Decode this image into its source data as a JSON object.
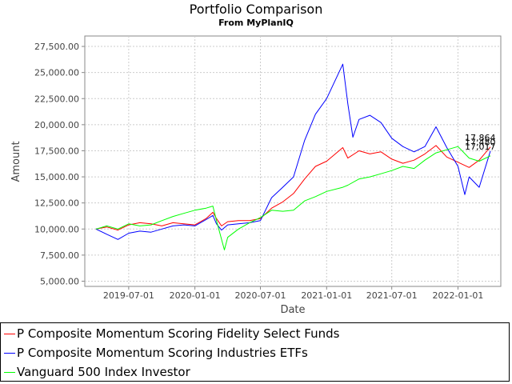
{
  "chart_data": {
    "type": "line",
    "title": "Portfolio Comparison",
    "subtitle": "From MyPlanIQ",
    "xlabel": "Date",
    "ylabel": "Amount",
    "ylim": [
      4500,
      28500
    ],
    "xlim": [
      "2019-03-01",
      "2022-04-30"
    ],
    "y_ticks": [
      "5,000.00",
      "7,500.00",
      "10,000.00",
      "12,500.00",
      "15,000.00",
      "17,500.00",
      "20,000.00",
      "22,500.00",
      "25,000.00",
      "27,500.00"
    ],
    "x_ticks": [
      "2019-07-01",
      "2020-01-01",
      "2020-07-01",
      "2021-01-01",
      "2021-07-01",
      "2022-01-01"
    ],
    "grid": true,
    "legend_position": "bottom",
    "end_labels": [
      "17,864",
      "17,480",
      "17,017"
    ],
    "series": [
      {
        "name": "P Composite Momentum Scoring Fidelity Select Funds",
        "color": "#ff0000",
        "points": [
          [
            "2019-04-01",
            10000
          ],
          [
            "2019-05-01",
            10200
          ],
          [
            "2019-06-01",
            9900
          ],
          [
            "2019-07-01",
            10400
          ],
          [
            "2019-08-01",
            10600
          ],
          [
            "2019-09-01",
            10500
          ],
          [
            "2019-10-01",
            10300
          ],
          [
            "2019-11-01",
            10600
          ],
          [
            "2019-12-01",
            10500
          ],
          [
            "2020-01-01",
            10400
          ],
          [
            "2020-02-01",
            11000
          ],
          [
            "2020-02-20",
            11600
          ],
          [
            "2020-03-01",
            11000
          ],
          [
            "2020-03-15",
            10300
          ],
          [
            "2020-04-01",
            10700
          ],
          [
            "2020-05-01",
            10800
          ],
          [
            "2020-06-01",
            10800
          ],
          [
            "2020-07-01",
            11000
          ],
          [
            "2020-08-01",
            12000
          ],
          [
            "2020-09-01",
            12600
          ],
          [
            "2020-10-01",
            13400
          ],
          [
            "2020-11-01",
            14800
          ],
          [
            "2020-12-01",
            16000
          ],
          [
            "2021-01-01",
            16500
          ],
          [
            "2021-02-15",
            17800
          ],
          [
            "2021-03-01",
            16800
          ],
          [
            "2021-04-01",
            17500
          ],
          [
            "2021-05-01",
            17200
          ],
          [
            "2021-06-01",
            17400
          ],
          [
            "2021-07-01",
            16700
          ],
          [
            "2021-08-01",
            16300
          ],
          [
            "2021-09-01",
            16600
          ],
          [
            "2021-10-01",
            17200
          ],
          [
            "2021-11-01",
            18000
          ],
          [
            "2021-12-01",
            16900
          ],
          [
            "2022-01-01",
            16400
          ],
          [
            "2022-02-01",
            15900
          ],
          [
            "2022-03-01",
            16600
          ],
          [
            "2022-04-01",
            17864
          ]
        ]
      },
      {
        "name": "P Composite Momentum Scoring Industries ETFs",
        "color": "#0000ff",
        "points": [
          [
            "2019-04-01",
            10000
          ],
          [
            "2019-05-01",
            9500
          ],
          [
            "2019-06-01",
            9000
          ],
          [
            "2019-07-01",
            9600
          ],
          [
            "2019-08-01",
            9800
          ],
          [
            "2019-09-01",
            9700
          ],
          [
            "2019-10-01",
            10000
          ],
          [
            "2019-11-01",
            10300
          ],
          [
            "2019-12-01",
            10400
          ],
          [
            "2020-01-01",
            10300
          ],
          [
            "2020-02-01",
            10900
          ],
          [
            "2020-02-20",
            11300
          ],
          [
            "2020-03-01",
            10500
          ],
          [
            "2020-03-15",
            9900
          ],
          [
            "2020-04-01",
            10400
          ],
          [
            "2020-05-01",
            10500
          ],
          [
            "2020-06-01",
            10600
          ],
          [
            "2020-07-01",
            10800
          ],
          [
            "2020-08-01",
            13000
          ],
          [
            "2020-09-01",
            14000
          ],
          [
            "2020-10-01",
            15000
          ],
          [
            "2020-11-01",
            18500
          ],
          [
            "2020-12-01",
            21000
          ],
          [
            "2021-01-01",
            22500
          ],
          [
            "2021-02-15",
            25800
          ],
          [
            "2021-03-01",
            22000
          ],
          [
            "2021-03-15",
            18800
          ],
          [
            "2021-04-01",
            20500
          ],
          [
            "2021-05-01",
            20900
          ],
          [
            "2021-06-01",
            20200
          ],
          [
            "2021-07-01",
            18700
          ],
          [
            "2021-08-01",
            17900
          ],
          [
            "2021-09-01",
            17400
          ],
          [
            "2021-10-01",
            17900
          ],
          [
            "2021-11-01",
            19800
          ],
          [
            "2021-12-01",
            17800
          ],
          [
            "2022-01-01",
            16000
          ],
          [
            "2022-01-20",
            13300
          ],
          [
            "2022-02-01",
            15000
          ],
          [
            "2022-03-01",
            14000
          ],
          [
            "2022-04-01",
            17480
          ]
        ]
      },
      {
        "name": "Vanguard 500 Index Investor",
        "color": "#00ff00",
        "points": [
          [
            "2019-04-01",
            10000
          ],
          [
            "2019-05-01",
            10300
          ],
          [
            "2019-06-01",
            10000
          ],
          [
            "2019-07-01",
            10500
          ],
          [
            "2019-08-01",
            10300
          ],
          [
            "2019-09-01",
            10400
          ],
          [
            "2019-10-01",
            10800
          ],
          [
            "2019-11-01",
            11200
          ],
          [
            "2019-12-01",
            11500
          ],
          [
            "2020-01-01",
            11800
          ],
          [
            "2020-02-01",
            12000
          ],
          [
            "2020-02-20",
            12200
          ],
          [
            "2020-03-01",
            10800
          ],
          [
            "2020-03-23",
            8000
          ],
          [
            "2020-04-01",
            9200
          ],
          [
            "2020-05-01",
            10000
          ],
          [
            "2020-06-01",
            10600
          ],
          [
            "2020-07-01",
            11100
          ],
          [
            "2020-08-01",
            11800
          ],
          [
            "2020-09-01",
            11700
          ],
          [
            "2020-10-01",
            11800
          ],
          [
            "2020-11-01",
            12700
          ],
          [
            "2020-12-01",
            13100
          ],
          [
            "2021-01-01",
            13600
          ],
          [
            "2021-02-15",
            14000
          ],
          [
            "2021-03-01",
            14200
          ],
          [
            "2021-04-01",
            14800
          ],
          [
            "2021-05-01",
            15000
          ],
          [
            "2021-06-01",
            15300
          ],
          [
            "2021-07-01",
            15600
          ],
          [
            "2021-08-01",
            16000
          ],
          [
            "2021-09-01",
            15800
          ],
          [
            "2021-10-01",
            16600
          ],
          [
            "2021-11-01",
            17300
          ],
          [
            "2021-12-01",
            17600
          ],
          [
            "2022-01-01",
            17900
          ],
          [
            "2022-02-01",
            16800
          ],
          [
            "2022-03-01",
            16500
          ],
          [
            "2022-04-01",
            17017
          ]
        ]
      }
    ]
  }
}
